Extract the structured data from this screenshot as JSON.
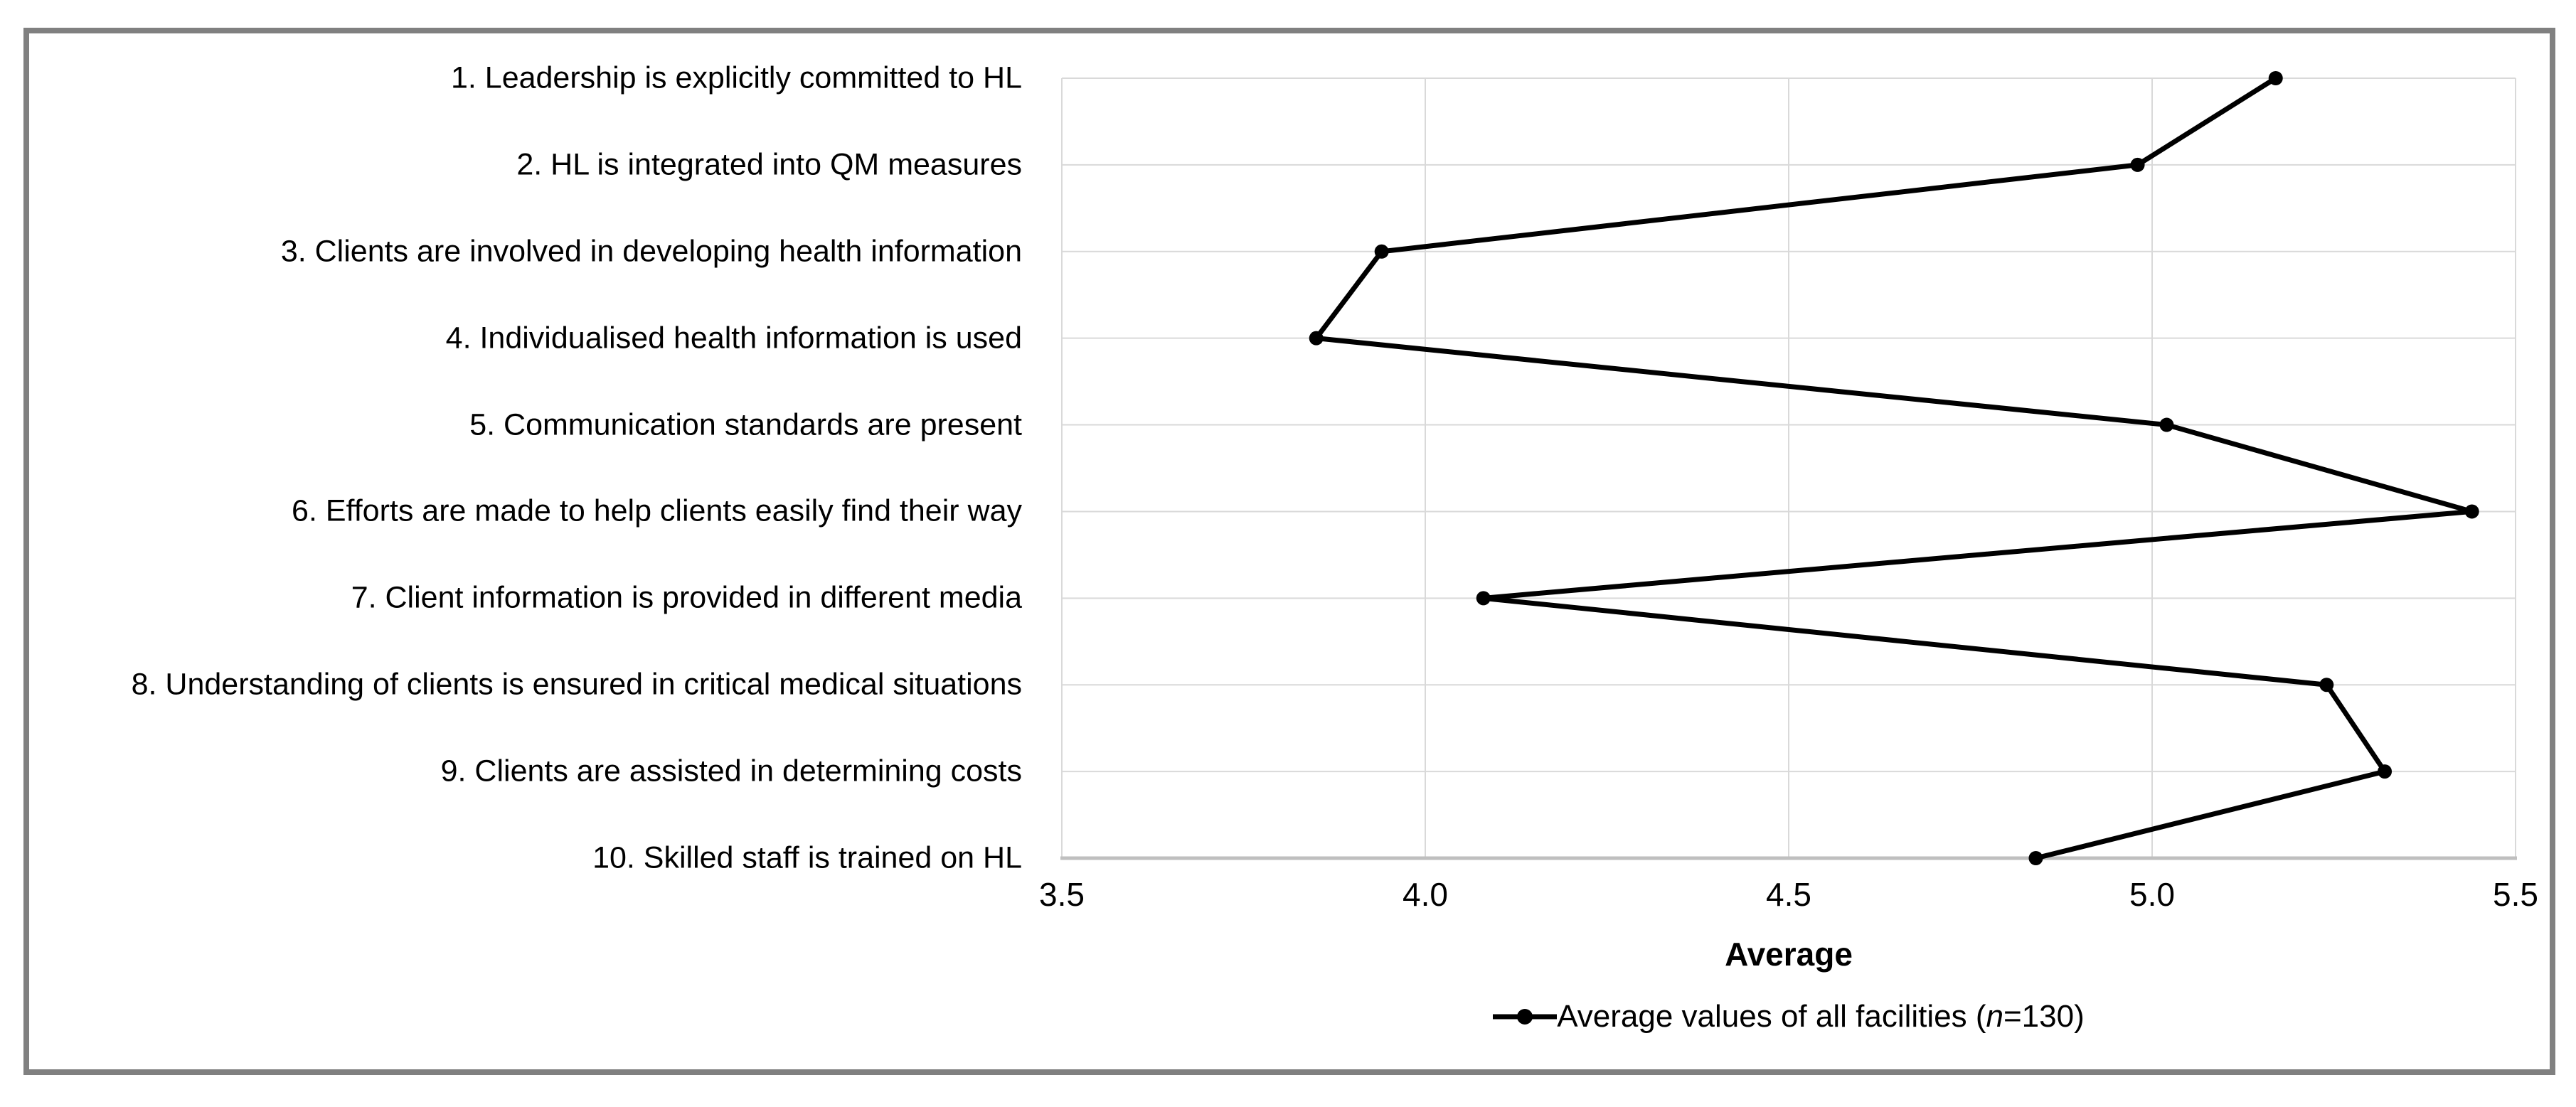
{
  "figure": {
    "background": "#ffffff",
    "border_color": "#808080"
  },
  "axis": {
    "title": "Average"
  },
  "legend": {
    "prefix": "Average values of all facilities (",
    "n_italic": "n",
    "suffix": "=130)"
  },
  "chart_data": {
    "type": "line",
    "orientation": "categories-on-y-values-on-x",
    "title": "",
    "xlabel": "Average",
    "ylabel": "",
    "xlim": [
      3.5,
      5.5
    ],
    "xticks": [
      "3.5",
      "4.0",
      "4.5",
      "5.0",
      "5.5"
    ],
    "xtick_values": [
      3.5,
      4.0,
      4.5,
      5.0,
      5.5
    ],
    "grid": true,
    "legend_position": "bottom",
    "categories": [
      "1. Leadership is explicitly committed to HL",
      "2. HL is integrated into QM measures",
      "3. Clients are involved in developing health information",
      "4. Individualised health information is used",
      "5. Communication standards are present",
      "6. Efforts are made to help clients easily find their way",
      "7. Client information is provided in different media",
      "8. Understanding of clients is ensured in critical medical situations",
      "9. Clients are assisted in determining costs",
      "10. Skilled staff is trained on HL"
    ],
    "series": [
      {
        "name": "Average values of all facilities (n=130)",
        "values": [
          5.17,
          4.98,
          3.94,
          3.85,
          5.02,
          5.44,
          4.08,
          5.24,
          5.32,
          4.84
        ]
      }
    ],
    "colors": {
      "line": "#000000",
      "marker": "#000000",
      "gridline": "#d9d9d9",
      "axis_line": "#bfbfbf"
    }
  }
}
